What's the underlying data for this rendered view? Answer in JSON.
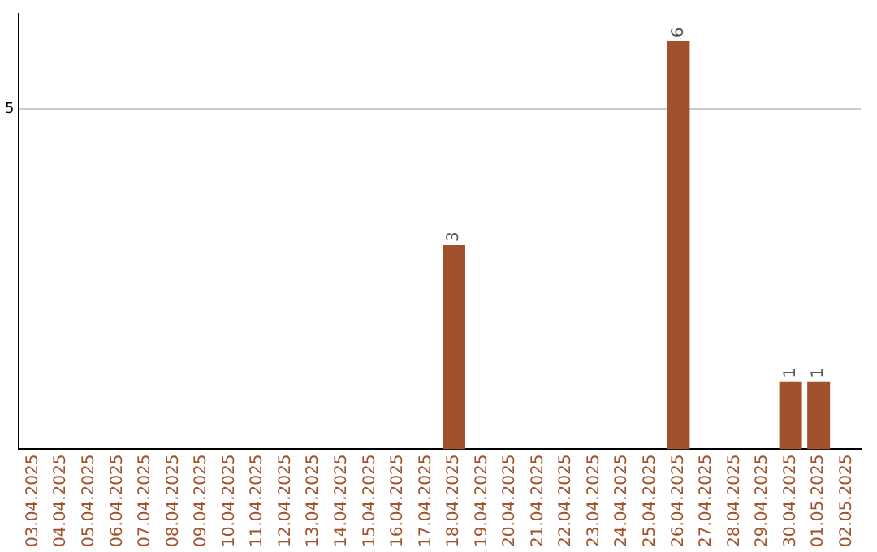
{
  "chart_data": {
    "type": "bar",
    "categories": [
      "03.04.2025",
      "04.04.2025",
      "05.04.2025",
      "06.04.2025",
      "07.04.2025",
      "08.04.2025",
      "09.04.2025",
      "10.04.2025",
      "11.04.2025",
      "12.04.2025",
      "13.04.2025",
      "14.04.2025",
      "15.04.2025",
      "16.04.2025",
      "17.04.2025",
      "18.04.2025",
      "19.04.2025",
      "20.04.2025",
      "21.04.2025",
      "22.04.2025",
      "23.04.2025",
      "24.04.2025",
      "25.04.2025",
      "26.04.2025",
      "27.04.2025",
      "28.04.2025",
      "29.04.2025",
      "30.04.2025",
      "01.05.2025",
      "02.05.2025"
    ],
    "values": [
      null,
      null,
      null,
      null,
      null,
      null,
      null,
      null,
      null,
      null,
      null,
      null,
      null,
      null,
      null,
      3,
      null,
      null,
      null,
      null,
      null,
      null,
      null,
      6,
      null,
      null,
      null,
      1,
      1,
      null
    ],
    "data_labels": true,
    "color": "#a0522d",
    "ylim": [
      0,
      6.4
    ],
    "yticks": [
      5
    ],
    "grid": "y",
    "legend": false
  }
}
